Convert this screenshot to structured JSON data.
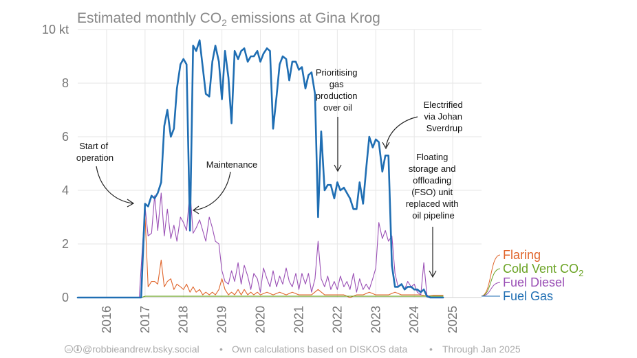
{
  "chart_data": {
    "type": "line",
    "title_main": "Estimated monthly CO",
    "title_sub": "2",
    "title_rest": " emissions at Gina Krog",
    "ylim": [
      0,
      10
    ],
    "y_ticks": [
      {
        "value": 0,
        "label": "0"
      },
      {
        "value": 2,
        "label": "2"
      },
      {
        "value": 4,
        "label": "4"
      },
      {
        "value": 6,
        "label": "6"
      },
      {
        "value": 8,
        "label": "8"
      },
      {
        "value": 10,
        "label": "10 kt"
      }
    ],
    "x_range": [
      2015.25,
      2025.75
    ],
    "x_ticks": [
      "2016",
      "2017",
      "2018",
      "2019",
      "2020",
      "2021",
      "2022",
      "2023",
      "2024",
      "2025"
    ],
    "grid": true,
    "legend_position": "right",
    "series": [
      {
        "name": "Fuel Gas",
        "color": "#1f6eb3",
        "points": [
          [
            2015.25,
            0
          ],
          [
            2016.9,
            0
          ],
          [
            2017.0,
            3.5
          ],
          [
            2017.08,
            3.4
          ],
          [
            2017.17,
            3.8
          ],
          [
            2017.25,
            3.7
          ],
          [
            2017.33,
            3.9
          ],
          [
            2017.42,
            4.3
          ],
          [
            2017.5,
            6.4
          ],
          [
            2017.58,
            7.0
          ],
          [
            2017.67,
            6.0
          ],
          [
            2017.75,
            6.3
          ],
          [
            2017.83,
            7.8
          ],
          [
            2017.92,
            8.7
          ],
          [
            2018.0,
            8.9
          ],
          [
            2018.08,
            8.7
          ],
          [
            2018.17,
            2.5
          ],
          [
            2018.25,
            9.4
          ],
          [
            2018.33,
            9.2
          ],
          [
            2018.42,
            9.6
          ],
          [
            2018.5,
            8.6
          ],
          [
            2018.58,
            7.6
          ],
          [
            2018.67,
            7.5
          ],
          [
            2018.75,
            8.8
          ],
          [
            2018.83,
            9.4
          ],
          [
            2018.92,
            8.8
          ],
          [
            2019.0,
            7.4
          ],
          [
            2019.08,
            9.2
          ],
          [
            2019.17,
            8.2
          ],
          [
            2019.25,
            6.5
          ],
          [
            2019.33,
            9.2
          ],
          [
            2019.42,
            8.9
          ],
          [
            2019.5,
            9.2
          ],
          [
            2019.58,
            9.3
          ],
          [
            2019.67,
            8.8
          ],
          [
            2019.75,
            9.0
          ],
          [
            2019.83,
            9.0
          ],
          [
            2019.92,
            9.2
          ],
          [
            2020.0,
            8.8
          ],
          [
            2020.08,
            9.1
          ],
          [
            2020.17,
            9.3
          ],
          [
            2020.25,
            9.2
          ],
          [
            2020.33,
            6.3
          ],
          [
            2020.42,
            7.5
          ],
          [
            2020.5,
            8.7
          ],
          [
            2020.58,
            9.0
          ],
          [
            2020.67,
            8.9
          ],
          [
            2020.75,
            8.1
          ],
          [
            2020.83,
            8.8
          ],
          [
            2020.92,
            8.8
          ],
          [
            2021.0,
            8.5
          ],
          [
            2021.08,
            8.6
          ],
          [
            2021.17,
            7.8
          ],
          [
            2021.25,
            8.3
          ],
          [
            2021.33,
            8.4
          ],
          [
            2021.42,
            7.6
          ],
          [
            2021.5,
            3.0
          ],
          [
            2021.58,
            6.2
          ],
          [
            2021.67,
            4.0
          ],
          [
            2021.75,
            4.2
          ],
          [
            2021.83,
            4.2
          ],
          [
            2021.92,
            3.7
          ],
          [
            2022.0,
            4.3
          ],
          [
            2022.08,
            4.0
          ],
          [
            2022.17,
            4.1
          ],
          [
            2022.25,
            3.9
          ],
          [
            2022.33,
            3.7
          ],
          [
            2022.42,
            3.3
          ],
          [
            2022.5,
            3.3
          ],
          [
            2022.58,
            4.3
          ],
          [
            2022.67,
            3.5
          ],
          [
            2022.75,
            4.8
          ],
          [
            2022.83,
            6.0
          ],
          [
            2022.92,
            5.6
          ],
          [
            2023.0,
            5.9
          ],
          [
            2023.08,
            5.8
          ],
          [
            2023.17,
            4.7
          ],
          [
            2023.25,
            5.3
          ],
          [
            2023.33,
            5.3
          ],
          [
            2023.42,
            1.2
          ],
          [
            2023.5,
            0.4
          ],
          [
            2023.58,
            0.4
          ],
          [
            2023.67,
            0.5
          ],
          [
            2023.75,
            0.3
          ],
          [
            2023.83,
            0.4
          ],
          [
            2023.92,
            0.4
          ],
          [
            2024.0,
            0.3
          ],
          [
            2024.08,
            0.3
          ],
          [
            2024.17,
            0.2
          ],
          [
            2024.25,
            0.3
          ],
          [
            2024.33,
            0.05
          ],
          [
            2024.42,
            0.0
          ],
          [
            2024.5,
            0.0
          ],
          [
            2024.58,
            0.0
          ],
          [
            2024.67,
            0.0
          ],
          [
            2024.75,
            0.0
          ]
        ]
      },
      {
        "name": "Fuel Diesel",
        "color": "#9a4fb5",
        "points": [
          [
            2015.25,
            0
          ],
          [
            2016.85,
            0
          ],
          [
            2017.0,
            3.4
          ],
          [
            2017.08,
            2.3
          ],
          [
            2017.17,
            2.4
          ],
          [
            2017.25,
            3.8
          ],
          [
            2017.33,
            2.5
          ],
          [
            2017.42,
            3.9
          ],
          [
            2017.5,
            2.3
          ],
          [
            2017.58,
            3.3
          ],
          [
            2017.67,
            2.2
          ],
          [
            2017.75,
            2.7
          ],
          [
            2017.83,
            2.1
          ],
          [
            2017.92,
            3.0
          ],
          [
            2018.0,
            2.8
          ],
          [
            2018.08,
            2.5
          ],
          [
            2018.17,
            4.0
          ],
          [
            2018.25,
            2.4
          ],
          [
            2018.33,
            2.6
          ],
          [
            2018.42,
            2.9
          ],
          [
            2018.5,
            2.5
          ],
          [
            2018.58,
            2.1
          ],
          [
            2018.67,
            3.0
          ],
          [
            2018.75,
            2.6
          ],
          [
            2018.83,
            2.1
          ],
          [
            2018.92,
            2.0
          ],
          [
            2019.0,
            1.0
          ],
          [
            2019.08,
            0.6
          ],
          [
            2019.17,
            0.5
          ],
          [
            2019.25,
            1.0
          ],
          [
            2019.33,
            0.6
          ],
          [
            2019.42,
            1.3
          ],
          [
            2019.5,
            0.5
          ],
          [
            2019.58,
            1.2
          ],
          [
            2019.67,
            0.8
          ],
          [
            2019.75,
            0.3
          ],
          [
            2019.83,
            0.9
          ],
          [
            2019.92,
            0.7
          ],
          [
            2020.0,
            0.2
          ],
          [
            2020.08,
            1.1
          ],
          [
            2020.17,
            0.7
          ],
          [
            2020.25,
            0.4
          ],
          [
            2020.33,
            1.0
          ],
          [
            2020.42,
            0.4
          ],
          [
            2020.5,
            0.8
          ],
          [
            2020.58,
            0.5
          ],
          [
            2020.67,
            1.1
          ],
          [
            2020.75,
            0.6
          ],
          [
            2020.83,
            0.4
          ],
          [
            2020.92,
            0.9
          ],
          [
            2021.0,
            0.3
          ],
          [
            2021.08,
            0.9
          ],
          [
            2021.17,
            0.5
          ],
          [
            2021.25,
            0.9
          ],
          [
            2021.33,
            0.2
          ],
          [
            2021.42,
            0.7
          ],
          [
            2021.5,
            2.1
          ],
          [
            2021.58,
            0.7
          ],
          [
            2021.67,
            0.4
          ],
          [
            2021.75,
            0.8
          ],
          [
            2021.83,
            0.3
          ],
          [
            2021.92,
            0.6
          ],
          [
            2022.0,
            0.3
          ],
          [
            2022.08,
            0.8
          ],
          [
            2022.17,
            0.4
          ],
          [
            2022.25,
            0.6
          ],
          [
            2022.33,
            0.3
          ],
          [
            2022.42,
            0.9
          ],
          [
            2022.5,
            0.2
          ],
          [
            2022.58,
            0.7
          ],
          [
            2022.67,
            0.3
          ],
          [
            2022.75,
            0.5
          ],
          [
            2022.83,
            0.3
          ],
          [
            2022.92,
            0.7
          ],
          [
            2023.0,
            1.1
          ],
          [
            2023.08,
            2.8
          ],
          [
            2023.17,
            2.2
          ],
          [
            2023.25,
            2.5
          ],
          [
            2023.33,
            2.1
          ],
          [
            2023.42,
            2.3
          ],
          [
            2023.5,
            0.9
          ],
          [
            2023.58,
            0.4
          ],
          [
            2023.67,
            0.5
          ],
          [
            2023.75,
            0.3
          ],
          [
            2023.83,
            0.6
          ],
          [
            2023.92,
            0.4
          ],
          [
            2024.0,
            0.5
          ],
          [
            2024.08,
            0.2
          ],
          [
            2024.17,
            0.1
          ],
          [
            2024.25,
            1.3
          ],
          [
            2024.33,
            0.1
          ],
          [
            2024.42,
            0.0
          ],
          [
            2024.5,
            0.0
          ],
          [
            2024.67,
            0.0
          ]
        ]
      },
      {
        "name": "Cold Vent CO2",
        "color": "#6aa323",
        "points": [
          [
            2015.25,
            0
          ],
          [
            2016.9,
            0
          ],
          [
            2017.0,
            0.05
          ],
          [
            2017.5,
            0.05
          ],
          [
            2018.0,
            0.05
          ],
          [
            2019.0,
            0.05
          ],
          [
            2020.0,
            0.05
          ],
          [
            2021.0,
            0.05
          ],
          [
            2022.0,
            0.05
          ],
          [
            2023.0,
            0.05
          ],
          [
            2023.5,
            0.05
          ],
          [
            2024.0,
            0.05
          ],
          [
            2024.5,
            0.05
          ],
          [
            2024.75,
            0.05
          ]
        ]
      },
      {
        "name": "Flaring",
        "color": "#e0652b",
        "points": [
          [
            2015.25,
            0
          ],
          [
            2016.9,
            0
          ],
          [
            2017.0,
            3.1
          ],
          [
            2017.08,
            0.4
          ],
          [
            2017.17,
            0.6
          ],
          [
            2017.25,
            0.6
          ],
          [
            2017.33,
            0.5
          ],
          [
            2017.42,
            1.4
          ],
          [
            2017.5,
            0.4
          ],
          [
            2017.58,
            0.6
          ],
          [
            2017.67,
            0.7
          ],
          [
            2017.75,
            0.3
          ],
          [
            2017.83,
            0.5
          ],
          [
            2017.92,
            0.4
          ],
          [
            2018.0,
            0.3
          ],
          [
            2018.08,
            0.5
          ],
          [
            2018.17,
            0.2
          ],
          [
            2018.25,
            0.4
          ],
          [
            2018.33,
            0.2
          ],
          [
            2018.42,
            0.3
          ],
          [
            2018.5,
            0.1
          ],
          [
            2018.58,
            0.2
          ],
          [
            2018.67,
            0.1
          ],
          [
            2018.75,
            0.2
          ],
          [
            2018.83,
            0.1
          ],
          [
            2018.92,
            0.3
          ],
          [
            2019.0,
            0.7
          ],
          [
            2019.08,
            0.3
          ],
          [
            2019.17,
            0.1
          ],
          [
            2019.25,
            0.2
          ],
          [
            2019.33,
            0.1
          ],
          [
            2019.42,
            0.3
          ],
          [
            2019.5,
            0.1
          ],
          [
            2019.58,
            0.3
          ],
          [
            2019.67,
            0.1
          ],
          [
            2019.75,
            0.2
          ],
          [
            2019.83,
            0.1
          ],
          [
            2019.92,
            0.2
          ],
          [
            2020.0,
            0.1
          ],
          [
            2020.17,
            0.2
          ],
          [
            2020.33,
            0.1
          ],
          [
            2020.5,
            0.2
          ],
          [
            2020.67,
            0.1
          ],
          [
            2020.83,
            0.2
          ],
          [
            2021.0,
            0.1
          ],
          [
            2021.17,
            0.1
          ],
          [
            2021.33,
            0.1
          ],
          [
            2021.5,
            0.3
          ],
          [
            2021.67,
            0.1
          ],
          [
            2021.83,
            0.1
          ],
          [
            2022.0,
            0.1
          ],
          [
            2022.17,
            0.1
          ],
          [
            2022.33,
            0.0
          ],
          [
            2022.5,
            0.1
          ],
          [
            2022.67,
            0.1
          ],
          [
            2022.83,
            0.2
          ],
          [
            2023.0,
            0.1
          ],
          [
            2023.17,
            0.1
          ],
          [
            2023.33,
            0.1
          ],
          [
            2023.5,
            0.2
          ],
          [
            2023.67,
            0.1
          ],
          [
            2023.83,
            0.1
          ],
          [
            2024.0,
            0.1
          ],
          [
            2024.17,
            0.1
          ],
          [
            2024.33,
            0.05
          ],
          [
            2024.5,
            0.08
          ],
          [
            2024.75,
            0.08
          ]
        ]
      }
    ],
    "legend": [
      {
        "label": "Flaring",
        "sub": "",
        "color": "#e0652b"
      },
      {
        "label": "Cold Vent CO",
        "sub": "2",
        "color": "#6aa323"
      },
      {
        "label": "Fuel Diesel",
        "sub": "",
        "color": "#9a4fb5"
      },
      {
        "label": "Fuel Gas",
        "sub": "",
        "color": "#1f6eb3"
      }
    ],
    "annotations": [
      {
        "lines": [
          "Start of",
          "operation"
        ]
      },
      {
        "lines": [
          "Maintenance"
        ]
      },
      {
        "lines": [
          "Prioritising",
          "gas",
          "production",
          "over oil"
        ]
      },
      {
        "lines": [
          "Electrified",
          "via Johan",
          "Sverdrup"
        ]
      },
      {
        "lines": [
          "Floating",
          "storage and",
          "offloading",
          "(FSO) unit",
          "replaced with",
          "oil pipeline"
        ]
      }
    ]
  },
  "footer": {
    "handle": "@robbieandrew.bsky.social",
    "source": "Own calculations based on DISKOS data",
    "through": "Through Jan 2025",
    "separator": "•"
  }
}
